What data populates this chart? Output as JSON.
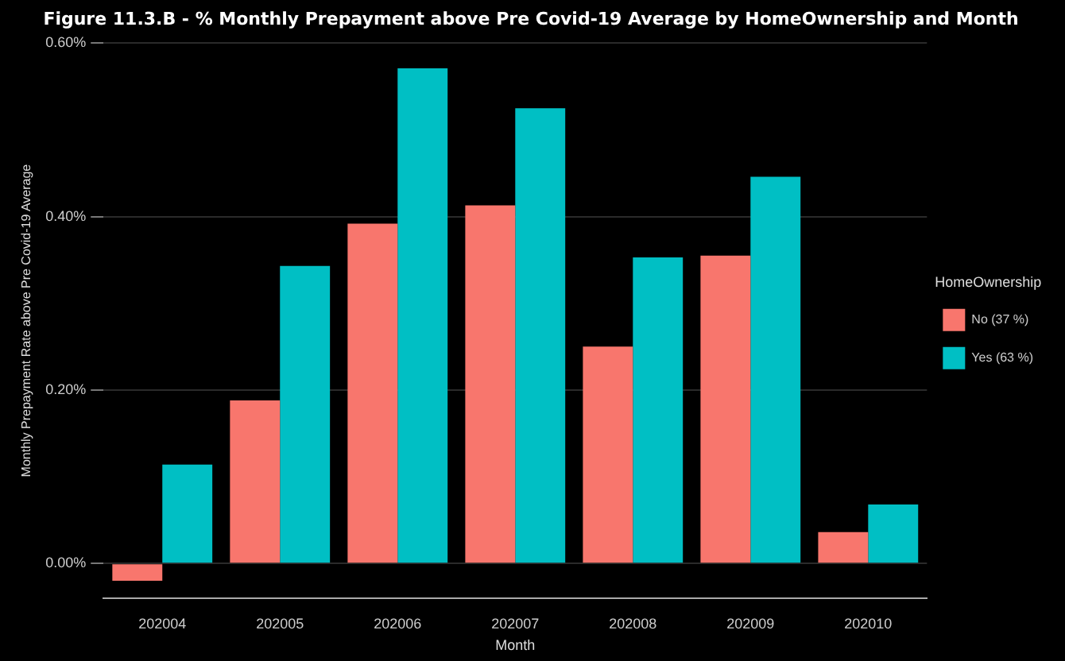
{
  "chart_data": {
    "type": "bar",
    "title": "Figure 11.3.B - % Monthly Prepayment above Pre Covid-19 Average by HomeOwnership and Month",
    "xlabel": "Month",
    "ylabel": "Monthly Prepayment Rate above Pre Covid-19 Average",
    "legend_title": "HomeOwnership",
    "categories": [
      "202004",
      "202005",
      "202006",
      "202007",
      "202008",
      "202009",
      "202010"
    ],
    "series": [
      {
        "name": "No (37 %)",
        "color": "#f8766d",
        "values": [
          -0.02,
          0.188,
          0.392,
          0.413,
          0.25,
          0.355,
          0.036
        ]
      },
      {
        "name": "Yes (63 %)",
        "color": "#00bfc4",
        "values": [
          0.114,
          0.343,
          0.571,
          0.525,
          0.353,
          0.446,
          0.068
        ]
      }
    ],
    "ylim": [
      -0.04,
      0.6
    ],
    "yticks": [
      {
        "value": 0,
        "label": "0.00%"
      },
      {
        "value": 0.2,
        "label": "0.20%"
      },
      {
        "value": 0.4,
        "label": "0.40%"
      },
      {
        "value": 0.6,
        "label": "0.60%"
      }
    ],
    "grid": "y",
    "legend": "right"
  }
}
